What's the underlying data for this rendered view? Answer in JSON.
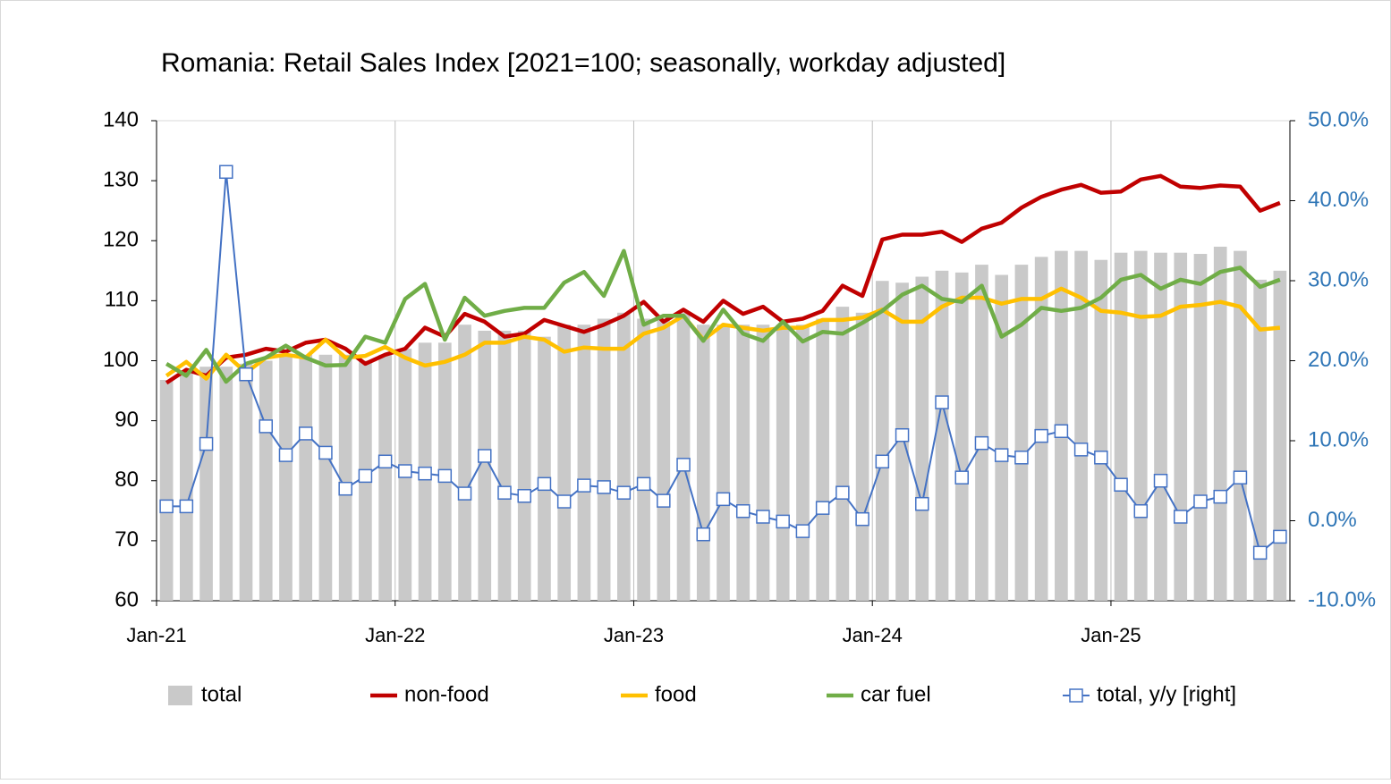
{
  "chart_data": {
    "type": "bar",
    "title": "Romania: Retail Sales Index [2021=100; seasonally, workday adjusted]",
    "categories": [
      "Jan-21",
      null,
      null,
      null,
      null,
      null,
      null,
      null,
      null,
      null,
      null,
      null,
      "Jan-22",
      null,
      null,
      null,
      null,
      null,
      null,
      null,
      null,
      null,
      null,
      null,
      "Jan-23",
      null,
      null,
      null,
      null,
      null,
      null,
      null,
      null,
      null,
      null,
      null,
      "Jan-24",
      null,
      null,
      null,
      null,
      null,
      null,
      null,
      null,
      null,
      null,
      null,
      "Jan-25",
      null,
      null,
      null,
      null,
      null,
      null,
      null,
      null
    ],
    "ylim": [
      60,
      140
    ],
    "yticks": [
      60,
      70,
      80,
      90,
      100,
      110,
      120,
      130,
      140
    ],
    "y2lim": [
      -10,
      50
    ],
    "y2ticks": [
      {
        "value": -10,
        "label": "-10.0%"
      },
      {
        "value": 0,
        "label": "0.0%"
      },
      {
        "value": 10,
        "label": "10.0%"
      },
      {
        "value": 20,
        "label": "20.0%"
      },
      {
        "value": 30,
        "label": "30.0%"
      },
      {
        "value": 40,
        "label": "40.0%"
      },
      {
        "value": 50,
        "label": "50.0%"
      }
    ],
    "grid": true,
    "series": [
      {
        "name": "total",
        "type": "bar",
        "color": "#c9c9c9",
        "values": [
          96.8,
          98,
          99,
          99,
          99.5,
          100,
          101,
          101,
          101,
          101,
          100,
          101,
          102,
          103,
          103,
          106,
          105,
          105,
          105,
          104,
          106,
          106,
          107,
          108,
          107,
          107,
          108,
          106,
          106,
          106,
          106,
          106,
          106,
          107,
          109,
          108,
          113.3,
          113,
          114,
          115,
          114.7,
          116,
          114.3,
          116,
          117.3,
          118.3,
          118.3,
          116.8,
          118,
          118.3,
          118,
          118,
          117.8,
          119,
          118.3,
          113.5,
          115
        ]
      },
      {
        "name": "non-food",
        "type": "line",
        "color": "#c00000",
        "values": [
          96.3,
          98.5,
          97.5,
          100.5,
          101,
          102,
          101.5,
          103,
          103.5,
          102,
          99.5,
          101,
          102,
          105.5,
          104,
          107.8,
          106.5,
          104,
          104.5,
          106.8,
          105.8,
          104.8,
          106,
          107.5,
          109.8,
          106.5,
          108.5,
          106.5,
          110,
          107.8,
          109,
          106.5,
          107,
          108.3,
          112.5,
          110.8,
          120.2,
          121,
          121,
          121.5,
          119.8,
          122,
          123,
          125.5,
          127.3,
          128.5,
          129.3,
          128,
          128.2,
          130.2,
          130.8,
          129,
          128.8,
          129.2,
          129,
          125,
          126.3
        ]
      },
      {
        "name": "food",
        "type": "line",
        "color": "#ffc000",
        "values": [
          97.5,
          99.8,
          97,
          101,
          98,
          100.5,
          101,
          100.5,
          103.5,
          100.5,
          100.8,
          102.3,
          100.5,
          99.2,
          99.8,
          101,
          103,
          103,
          104,
          103.5,
          101.5,
          102.2,
          102,
          102,
          104.5,
          105.5,
          107.5,
          103.5,
          106,
          105.5,
          105,
          105.5,
          105.5,
          106.8,
          106.8,
          107.2,
          108.5,
          106.5,
          106.5,
          109,
          110.5,
          110.5,
          109.5,
          110.3,
          110.3,
          112,
          110.5,
          108.3,
          108,
          107.3,
          107.5,
          109,
          109.3,
          109.8,
          109,
          105.2,
          105.5
        ]
      },
      {
        "name": "car fuel",
        "type": "line",
        "color": "#70ad47",
        "values": [
          99.5,
          97.5,
          101.8,
          96.5,
          99.5,
          100.5,
          102.5,
          100.5,
          99.2,
          99.3,
          104,
          103,
          110.3,
          112.8,
          103.5,
          110.5,
          107.5,
          108.3,
          108.8,
          108.8,
          113,
          114.8,
          110.8,
          118.3,
          106,
          107.5,
          107.5,
          103.3,
          108.5,
          104.5,
          103.3,
          106.5,
          103.2,
          104.8,
          104.5,
          106.3,
          108.3,
          111,
          112.5,
          110.3,
          109.8,
          112.5,
          104,
          106,
          108.8,
          108.3,
          108.8,
          110.5,
          113.5,
          114.3,
          112,
          113.5,
          112.8,
          114.8,
          115.5,
          112.3,
          113.5
        ]
      },
      {
        "name": "total, y/y [right]",
        "type": "line",
        "axis": "y2",
        "marker": "square",
        "color": "#4472c4",
        "values": [
          1.8,
          1.8,
          9.6,
          43.6,
          18.3,
          11.8,
          8.2,
          10.9,
          8.5,
          4.0,
          5.6,
          7.4,
          6.2,
          5.9,
          5.6,
          3.4,
          8.1,
          3.5,
          3.1,
          4.6,
          2.4,
          4.4,
          4.2,
          3.5,
          4.6,
          2.5,
          7.0,
          -1.7,
          2.7,
          1.2,
          0.5,
          -0.1,
          -1.3,
          1.6,
          3.5,
          0.2,
          7.4,
          10.7,
          2.1,
          14.8,
          5.4,
          9.7,
          8.2,
          7.9,
          10.6,
          11.2,
          8.9,
          7.9,
          4.5,
          1.2,
          5.0,
          0.5,
          2.4,
          3.0,
          5.4,
          -4.0,
          -2.0
        ]
      }
    ]
  }
}
